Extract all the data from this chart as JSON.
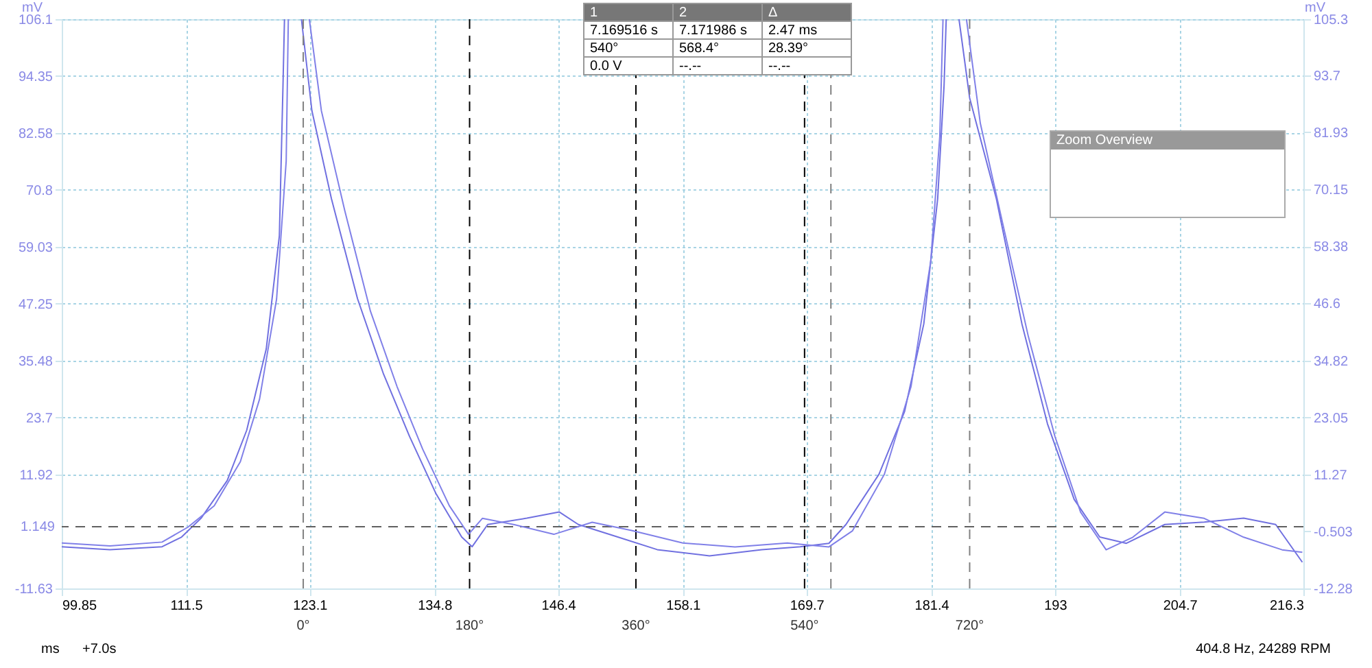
{
  "chart_data": {
    "type": "line",
    "ylabel": "mV",
    "y2label": "mV",
    "xlim": [
      99.85,
      216.3
    ],
    "xticks": [
      99.85,
      111.5,
      123.1,
      134.8,
      146.4,
      158.1,
      169.7,
      181.4,
      193.0,
      204.7,
      216.3
    ],
    "ylim": [
      -11.63,
      106.1
    ],
    "yticks": [
      -11.63,
      11.92,
      23.7,
      35.48,
      47.25,
      59.03,
      70.8,
      82.58,
      94.35,
      106.1
    ],
    "y2lim": [
      -12.28,
      105.3
    ],
    "y2ticks": [
      -12.28,
      -0.503,
      11.27,
      23.05,
      34.82,
      46.6,
      58.38,
      70.15,
      81.93,
      93.7,
      105.3
    ],
    "grid": true,
    "series": [
      {
        "color": "#7070e0",
        "x": [
          99.85,
          104.37,
          109.26,
          111.09,
          112.92,
          115.37,
          117.2,
          119.03,
          120.26,
          120.6,
          120.74,
          120.8,
          122.3,
          122.33,
          123.31,
          125.14,
          127.59,
          130.03,
          132.47,
          134.92,
          137.36,
          138.34,
          139.8,
          143.47,
          146.5,
          148.3,
          152.0,
          155.7,
          160.6,
          165.5,
          169.1,
          171.8,
          173.4,
          176.5,
          178.9,
          180.7,
          182.0,
          182.6,
          182.8,
          182.9,
          183.9,
          184.0,
          185.0,
          187.5,
          189.9,
          192.3,
          194.8,
          197.2,
          199.7,
          203.3,
          207.0,
          210.7,
          213.7,
          216.2
        ],
        "values": [
          -3.0,
          -3.6,
          -3.0,
          -1.0,
          2.9,
          10.7,
          21.1,
          37.9,
          61.3,
          92.4,
          106.1,
          null,
          null,
          106.1,
          87.2,
          69.0,
          48.3,
          32.7,
          19.8,
          8.1,
          -1.0,
          -3.0,
          1.6,
          2.9,
          4.2,
          1.6,
          -1.0,
          -3.6,
          -4.9,
          -3.6,
          -3.0,
          -2.3,
          1.6,
          12.0,
          25.0,
          43.1,
          69.0,
          92.4,
          106.1,
          null,
          null,
          106.1,
          89.8,
          69.0,
          43.1,
          22.4,
          6.8,
          -1.0,
          -2.3,
          1.6,
          2.1,
          2.9,
          1.6,
          -6.2
        ]
      },
      {
        "color": "#8080e8",
        "axis": "y2",
        "x": [
          99.85,
          104.37,
          109.26,
          111.7,
          114.15,
          116.6,
          118.4,
          120.0,
          120.9,
          121.1,
          121.2,
          123.0,
          123.07,
          124.2,
          126.4,
          128.8,
          131.3,
          133.7,
          136.2,
          138.0,
          139.3,
          142.3,
          146.0,
          149.6,
          153.3,
          158.1,
          163.0,
          167.9,
          171.8,
          174.0,
          177.0,
          179.5,
          181.35,
          182.2,
          182.5,
          182.6,
          184.6,
          184.7,
          186.0,
          188.1,
          190.5,
          193.0,
          195.4,
          197.8,
          200.3,
          203.3,
          207.0,
          210.7,
          214.3,
          216.2
        ],
        "values": [
          -2.9,
          -3.5,
          -2.7,
          0.4,
          4.8,
          13.9,
          26.8,
          47.5,
          76.0,
          105.3,
          null,
          null,
          105.3,
          86.4,
          65.7,
          45.0,
          29.4,
          16.5,
          4.8,
          -1.1,
          2.2,
          0.9,
          -1.1,
          1.4,
          -0.3,
          -2.9,
          -3.7,
          -2.9,
          -3.7,
          -0.4,
          11.3,
          29.4,
          55.3,
          81.2,
          105.3,
          null,
          null,
          105.3,
          83.8,
          63.1,
          39.8,
          19.1,
          3.5,
          -4.3,
          -1.7,
          3.5,
          2.2,
          -1.7,
          -4.3,
          -4.8
        ]
      }
    ],
    "ref_lines": [
      {
        "axis": "x",
        "value": 122.5,
        "color": "#808080",
        "line_style": "dashed"
      },
      {
        "axis": "x",
        "value": 138.1,
        "color": "#000000",
        "line_style": "dashed"
      },
      {
        "axis": "x",
        "value": 153.7,
        "color": "#000000",
        "line_style": "dashed"
      },
      {
        "axis": "x",
        "value": 169.516,
        "color": "#000000",
        "line_style": "dashed"
      },
      {
        "axis": "x",
        "value": 171.986,
        "color": "#808080",
        "line_style": "dashed"
      },
      {
        "axis": "x",
        "value": 185.0,
        "color": "#808080",
        "line_style": "dashed"
      },
      {
        "axis": "y",
        "value": 1.149,
        "label": "1.149",
        "color": "#606060",
        "line_style": "dashed"
      }
    ],
    "annotations": [
      "ms",
      "+7.0s",
      "404.8 Hz, 24289 RPM",
      "Zoom Overview",
      "1",
      "2",
      "Δ",
      "7.169516 s",
      "7.171986 s",
      "2.47 ms",
      "540°",
      "568.4°",
      "28.39°",
      "0.0 V",
      "--.--",
      "--.--",
      {
        "text": "0°",
        "x": 122.5,
        "y": -11.63
      },
      {
        "text": "180°",
        "x": 138.1,
        "y": -11.63
      },
      {
        "text": "360°",
        "x": 153.7,
        "y": -11.63
      },
      {
        "text": "540°",
        "x": 169.516,
        "y": -11.63
      },
      {
        "text": "720°",
        "x": 185.0,
        "y": -11.63
      }
    ]
  }
}
